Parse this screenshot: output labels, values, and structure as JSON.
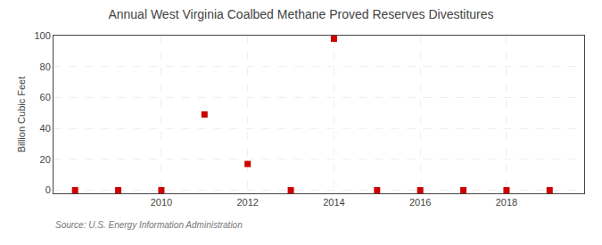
{
  "chart_data": {
    "type": "scatter",
    "title": "Annual West Virginia Coalbed Methane Proved Reserves Divestitures",
    "ylabel": "Billion Cubic Feet",
    "source": "Source: U.S. Energy Information Administration",
    "x": [
      2008,
      2009,
      2010,
      2011,
      2012,
      2013,
      2014,
      2015,
      2016,
      2017,
      2018,
      2019
    ],
    "values": [
      0,
      0,
      0,
      49,
      17,
      0,
      98,
      0,
      0,
      0,
      0,
      0
    ],
    "color": "#cc0000",
    "marker": "square",
    "xlim": [
      2007.5,
      2019.8
    ],
    "ylim": [
      -2,
      100
    ],
    "xticks": [
      2010,
      2012,
      2014,
      2016,
      2018
    ],
    "yticks": [
      0,
      20,
      40,
      60,
      80,
      100
    ],
    "grid": true
  }
}
